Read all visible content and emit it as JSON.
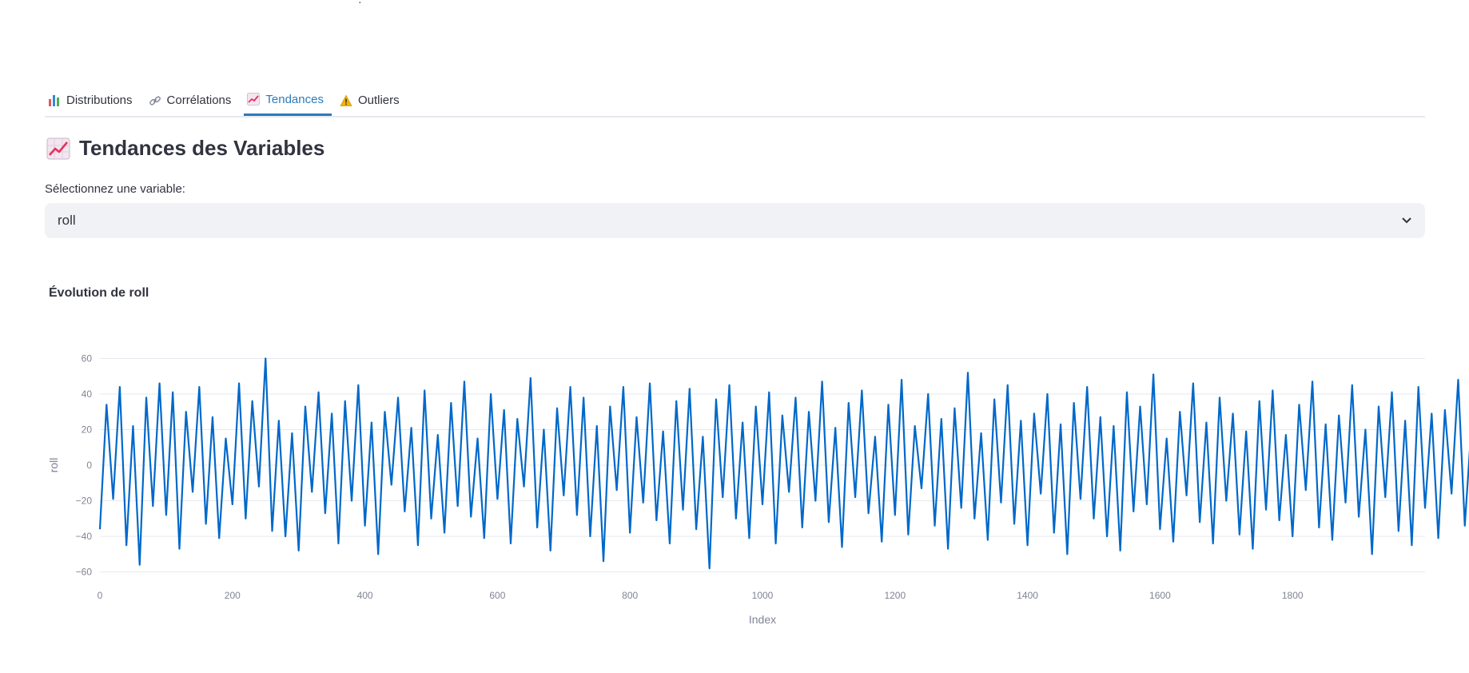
{
  "tabs": [
    {
      "label": "Distributions",
      "icon": "bar-chart-icon",
      "active": false
    },
    {
      "label": "Corrélations",
      "icon": "link-icon",
      "active": false
    },
    {
      "label": "Tendances",
      "icon": "trend-up-icon",
      "active": true
    },
    {
      "label": "Outliers",
      "icon": "warning-icon",
      "active": false
    }
  ],
  "page": {
    "title": "Tendances des Variables",
    "title_icon": "trend-up-icon"
  },
  "select": {
    "label": "Sélectionnez une variable:",
    "value": "roll"
  },
  "colors": {
    "accent": "#2b7bb9",
    "series": "#0068c9",
    "select_bg": "#f0f2f6"
  },
  "chart_data": {
    "type": "line",
    "title": "Évolution de roll",
    "xlabel": "Index",
    "ylabel": "roll",
    "xlim": [
      0,
      2000
    ],
    "ylim": [
      -62,
      62
    ],
    "xticks": [
      0,
      200,
      400,
      600,
      800,
      1000,
      1200,
      1400,
      1600,
      1800
    ],
    "yticks": [
      -60,
      -40,
      -20,
      0,
      20,
      40,
      60
    ],
    "grid": true,
    "legend": "none",
    "n_points": 2000,
    "value_range": [
      -59,
      60
    ],
    "series": [
      {
        "name": "",
        "x_start": 0,
        "x_step": 10,
        "values": [
          -36,
          34,
          -19,
          44,
          -45,
          22,
          -56,
          38,
          -23,
          46,
          -28,
          41,
          -47,
          30,
          -15,
          44,
          -33,
          27,
          -41,
          15,
          -22,
          46,
          -30,
          36,
          -12,
          60,
          -37,
          25,
          -40,
          18,
          -48,
          33,
          -15,
          41,
          -27,
          29,
          -44,
          36,
          -20,
          45,
          -34,
          24,
          -50,
          30,
          -11,
          38,
          -26,
          21,
          -45,
          42,
          -30,
          17,
          -38,
          35,
          -23,
          47,
          -29,
          15,
          -41,
          40,
          -19,
          31,
          -44,
          26,
          -12,
          49,
          -35,
          20,
          -48,
          32,
          -17,
          44,
          -28,
          38,
          -40,
          22,
          -54,
          33,
          -14,
          44,
          -38,
          27,
          -21,
          46,
          -31,
          19,
          -44,
          36,
          -25,
          43,
          -36,
          16,
          -58,
          37,
          -18,
          45,
          -30,
          24,
          -41,
          33,
          -22,
          41,
          -44,
          28,
          -15,
          38,
          -35,
          30,
          -20,
          47,
          -32,
          21,
          -46,
          35,
          -18,
          42,
          -27,
          16,
          -43,
          34,
          -28,
          48,
          -39,
          22,
          -13,
          40,
          -34,
          26,
          -47,
          32,
          -24,
          52,
          -30,
          18,
          -42,
          37,
          -21,
          45,
          -33,
          25,
          -45,
          29,
          -16,
          40,
          -38,
          23,
          -50,
          35,
          -19,
          44,
          -30,
          27,
          -40,
          22,
          -48,
          41,
          -26,
          33,
          -22,
          51,
          -36,
          15,
          -43,
          30,
          -17,
          46,
          -32,
          24,
          -44,
          38,
          -20,
          29,
          -39,
          19,
          -47,
          36,
          -25,
          42,
          -31,
          17,
          -40,
          34,
          -14,
          47,
          -35,
          23,
          -42,
          28,
          -21,
          45,
          -29,
          20,
          -50,
          33,
          -18,
          41,
          -37,
          25,
          -45,
          44,
          -24,
          29,
          -41,
          31,
          -16,
          48,
          -34,
          22,
          -50,
          32,
          -13,
          42,
          -28,
          25,
          -47,
          36,
          -23,
          46,
          -39,
          18,
          -44,
          29,
          -20,
          53,
          -32,
          24,
          -41,
          34,
          -19,
          42,
          -36,
          20,
          -52,
          31,
          -15,
          45,
          -33,
          27,
          -44,
          38,
          -22,
          47,
          -30,
          15,
          -46,
          35,
          -24,
          41,
          -35,
          21,
          -49,
          30,
          -18,
          48,
          -28,
          26,
          -43,
          37,
          -14,
          44,
          -38,
          22,
          -41,
          33,
          -27,
          52,
          -30,
          16,
          -47,
          36,
          -21,
          45,
          -39,
          23,
          -44,
          28,
          -17,
          48,
          -33,
          25,
          -42,
          34,
          -20,
          40,
          -36,
          19,
          -51,
          32,
          -16,
          46,
          -31,
          26,
          -45,
          39,
          -23,
          43,
          -29,
          17,
          -46,
          35,
          -19,
          50,
          -37,
          21,
          -48,
          33,
          -14,
          47,
          -31,
          24,
          -44,
          36,
          -22,
          41,
          -38,
          18,
          -47,
          30,
          -25,
          53,
          -33,
          22,
          -40,
          35,
          -18,
          46,
          -29,
          27,
          -52,
          37,
          -21,
          44,
          -35,
          20,
          -46,
          32,
          -15,
          49,
          -30,
          24,
          -43,
          34,
          -23,
          47,
          -39,
          17,
          -45,
          38,
          -19,
          42,
          -32,
          26,
          -48,
          31,
          -16,
          50,
          -36,
          23,
          -42,
          33,
          -20,
          45,
          -28,
          19,
          -47,
          40,
          -24,
          46,
          -33,
          18
        ]
      }
    ]
  }
}
